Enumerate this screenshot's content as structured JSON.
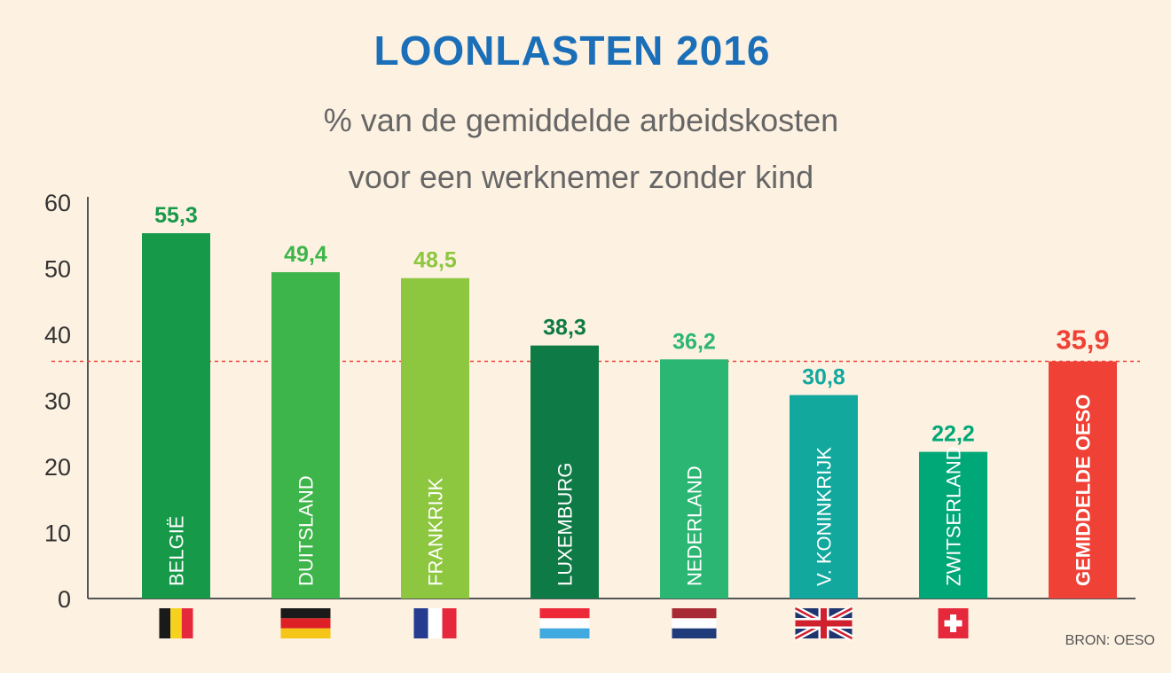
{
  "chart_data": {
    "type": "bar",
    "title": "LOONLASTEN 2016",
    "subtitle": [
      "% van de gemiddelde arbeidskosten",
      "voor een werknemer zonder kind"
    ],
    "categories": [
      "BELGIË",
      "DUITSLAND",
      "FRANKRIJK",
      "LUXEMBURG",
      "NEDERLAND",
      "V. KONINKRIJK",
      "ZWITSERLAND",
      "GEMIDDELDE OESO"
    ],
    "values": [
      55.3,
      49.4,
      48.5,
      38.3,
      36.2,
      30.8,
      22.2,
      35.9
    ],
    "value_labels": [
      "55,3",
      "49,4",
      "48,5",
      "38,3",
      "36,2",
      "30,8",
      "22,2",
      "35,9"
    ],
    "bar_colors": [
      "#17994a",
      "#3db54a",
      "#8dc63f",
      "#0e7a45",
      "#2bb673",
      "#13a89e",
      "#00a777",
      "#ef4136"
    ],
    "label_colors": [
      "#17994a",
      "#3db54a",
      "#8dc63f",
      "#0e7a45",
      "#2bb673",
      "#13a89e",
      "#00a777",
      "#ef4136"
    ],
    "flags": [
      "belgium-flag-icon",
      "germany-flag-icon",
      "france-flag-icon",
      "luxembourg-flag-icon",
      "netherlands-flag-icon",
      "uk-flag-icon",
      "switzerland-flag-icon",
      ""
    ],
    "ylim": [
      0,
      60
    ],
    "yticks": [
      0,
      10,
      20,
      30,
      40,
      50,
      60
    ],
    "reference_line": {
      "value": 35.9,
      "color": "#ef4136",
      "style": "dashed"
    },
    "grid": false,
    "source": "BRON: OESO"
  }
}
